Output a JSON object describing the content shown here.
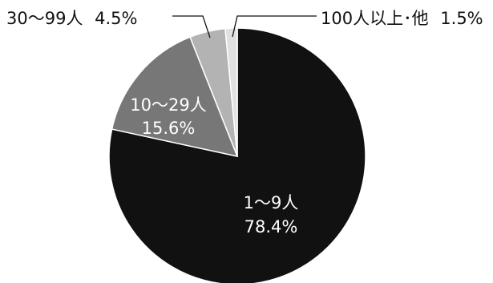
{
  "chart_data": {
    "type": "pie",
    "title": "",
    "slices": [
      {
        "category": "1〜9人",
        "value": 78.4,
        "value_label": "78.4%",
        "color": "#111111"
      },
      {
        "category": "10〜29人",
        "value": 15.6,
        "value_label": "15.6%",
        "color": "#777777"
      },
      {
        "category": "30〜99人",
        "value": 4.5,
        "value_label": "4.5%",
        "color": "#b3b3b3"
      },
      {
        "category": "100人以上･他",
        "value": 1.5,
        "value_label": "1.5%",
        "color": "#e0e0e0"
      }
    ],
    "start": "12 o'clock",
    "direction": "clockwise",
    "legend": "none"
  }
}
